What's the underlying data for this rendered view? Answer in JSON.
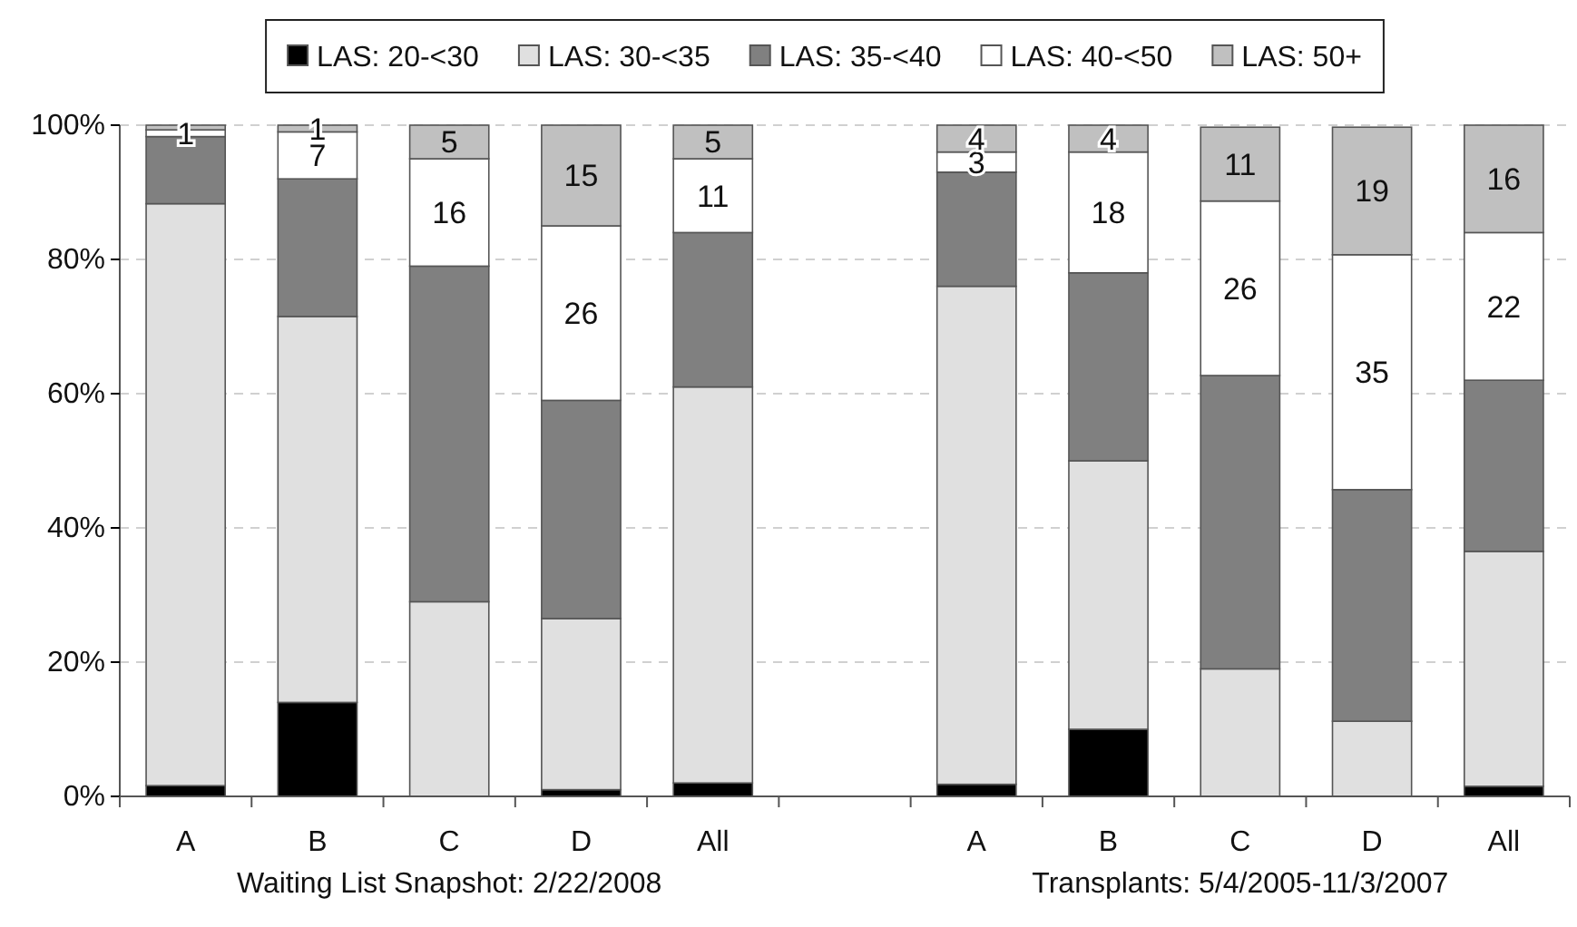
{
  "chart_data": {
    "type": "bar",
    "stacked": true,
    "categories": [
      "A",
      "B",
      "C",
      "D",
      "All",
      null,
      "A",
      "B",
      "C",
      "D",
      "All"
    ],
    "series": [
      {
        "name": "LAS: 20-<30",
        "color": "#000000",
        "values": [
          1.6,
          14,
          0,
          1,
          2,
          null,
          1.8,
          10,
          0,
          0,
          1.5
        ]
      },
      {
        "name": "LAS: 30-<35",
        "color": "#e0e0e0",
        "values": [
          86.7,
          57.5,
          29,
          25.5,
          59,
          null,
          74.2,
          40,
          19,
          11.2,
          35
        ]
      },
      {
        "name": "LAS: 35-<40",
        "color": "#808080",
        "values": [
          10,
          20.5,
          50,
          32.5,
          23,
          null,
          17,
          28,
          43.7,
          34.5,
          25.5
        ]
      },
      {
        "name": "LAS: 40-<50",
        "color": "#ffffff",
        "values": [
          1,
          7,
          16,
          26,
          11,
          null,
          3,
          18,
          26,
          35,
          22
        ],
        "value_labels": [
          "1",
          "7",
          "16",
          "26",
          "11",
          null,
          "3",
          "18",
          "26",
          "35",
          "22"
        ]
      },
      {
        "name": "LAS: 50+",
        "color": "#c0c0c0",
        "values": [
          0.7,
          1,
          5,
          15,
          5,
          null,
          4,
          4,
          11,
          19,
          16
        ],
        "value_labels": [
          null,
          "1",
          "5",
          "15",
          "5",
          null,
          "4",
          "4",
          "11",
          "19",
          "16"
        ]
      }
    ],
    "ylim": [
      0,
      100
    ],
    "yticks": [
      {
        "value": 0,
        "label": "0%"
      },
      {
        "value": 20,
        "label": "20%"
      },
      {
        "value": 40,
        "label": "40%"
      },
      {
        "value": 60,
        "label": "60%"
      },
      {
        "value": 80,
        "label": "80%"
      },
      {
        "value": 100,
        "label": "100%"
      }
    ],
    "grid": "y",
    "legend": "top",
    "annotations": [
      "Waiting List Snapshot: 2/22/2008",
      "Transplants: 5/4/2005-11/3/2007"
    ]
  }
}
